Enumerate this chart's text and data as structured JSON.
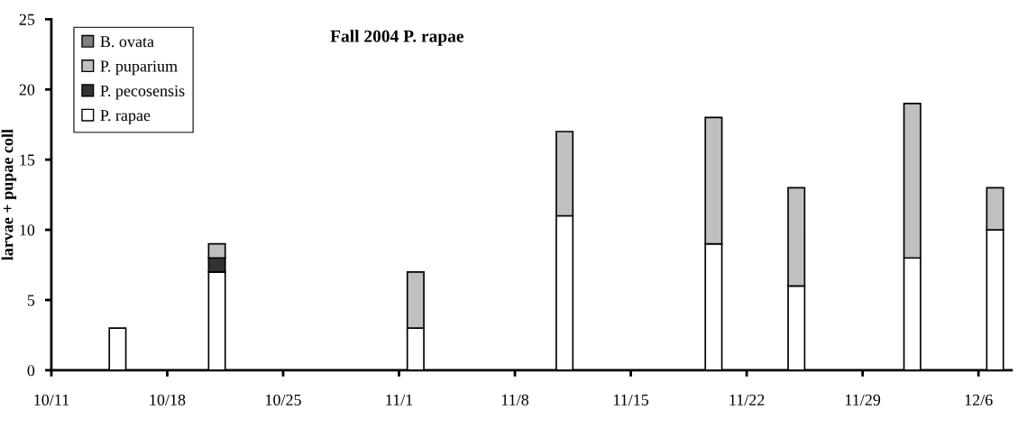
{
  "chart_data": {
    "type": "bar",
    "stacked": true,
    "title": "Fall 2004 P. rapae",
    "ylabel": "larvae + pupae coll",
    "x": [
      "2004-10-15",
      "2004-10-21",
      "2004-11-02",
      "2004-11-11",
      "2004-11-20",
      "2004-11-25",
      "2004-12-02",
      "2004-12-07"
    ],
    "series": [
      {
        "name": "P. rapae",
        "color": "#ffffff",
        "values": [
          3,
          7,
          3,
          11,
          9,
          6,
          8,
          10
        ]
      },
      {
        "name": "P. pecosensis",
        "color": "#333333",
        "values": [
          0,
          1,
          0,
          0,
          0,
          0,
          0,
          0
        ]
      },
      {
        "name": "P. puparium",
        "color": "#c0c0c0",
        "values": [
          0,
          1,
          4,
          6,
          9,
          7,
          11,
          3
        ]
      },
      {
        "name": "B. ovata",
        "color": "#808080",
        "values": [
          0,
          0,
          0,
          0,
          0,
          0,
          0,
          0
        ]
      }
    ],
    "xlim": [
      "2004-10-11",
      "2004-12-08"
    ],
    "xticks": [
      {
        "value": "2004-10-11",
        "label": "10/11"
      },
      {
        "value": "2004-10-18",
        "label": "10/18"
      },
      {
        "value": "2004-10-25",
        "label": "10/25"
      },
      {
        "value": "2004-11-01",
        "label": "11/1"
      },
      {
        "value": "2004-11-08",
        "label": "11/8"
      },
      {
        "value": "2004-11-15",
        "label": "11/15"
      },
      {
        "value": "2004-11-22",
        "label": "11/22"
      },
      {
        "value": "2004-11-29",
        "label": "11/29"
      },
      {
        "value": "2004-12-06",
        "label": "12/6"
      }
    ],
    "ylim": [
      0,
      25
    ],
    "yticks": [
      0,
      5,
      10,
      15,
      20,
      25
    ],
    "grid": false,
    "legend": "top left"
  }
}
